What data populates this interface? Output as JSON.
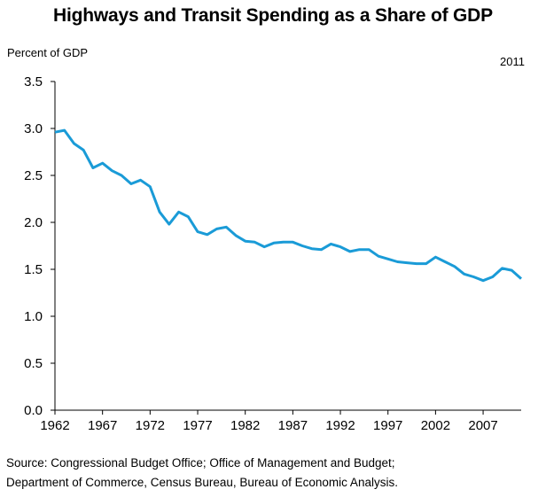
{
  "chart_data": {
    "type": "line",
    "title": "Highways and Transit Spending as a Share of GDP",
    "ylabel": "Percent of GDP",
    "xlabel": "",
    "annotation": "2011",
    "ylim": [
      0,
      3.5
    ],
    "xlim": [
      1962,
      2011
    ],
    "yticks": [
      0.0,
      0.5,
      1.0,
      1.5,
      2.0,
      2.5,
      3.0,
      3.5
    ],
    "ytick_labels": [
      "0.0",
      "0.5",
      "1.0",
      "1.5",
      "2.0",
      "2.5",
      "3.0",
      "3.5"
    ],
    "xticks": [
      1962,
      1967,
      1972,
      1977,
      1982,
      1987,
      1992,
      1997,
      2002,
      2007
    ],
    "xtick_labels": [
      "1962",
      "1967",
      "1972",
      "1977",
      "1982",
      "1987",
      "1992",
      "1997",
      "2002",
      "2007"
    ],
    "grid": false,
    "legend": "none",
    "series": [
      {
        "name": "Highways and Transit Spending",
        "color": "#1a9bd7",
        "x": [
          1962,
          1963,
          1964,
          1965,
          1966,
          1967,
          1968,
          1969,
          1970,
          1971,
          1972,
          1973,
          1974,
          1975,
          1976,
          1977,
          1978,
          1979,
          1980,
          1981,
          1982,
          1983,
          1984,
          1985,
          1986,
          1987,
          1988,
          1989,
          1990,
          1991,
          1992,
          1993,
          1994,
          1995,
          1996,
          1997,
          1998,
          1999,
          2000,
          2001,
          2002,
          2003,
          2004,
          2005,
          2006,
          2007,
          2008,
          2009,
          2010,
          2011
        ],
        "values": [
          2.96,
          2.98,
          2.84,
          2.77,
          2.58,
          2.63,
          2.55,
          2.5,
          2.41,
          2.45,
          2.38,
          2.11,
          1.98,
          2.11,
          2.06,
          1.9,
          1.87,
          1.93,
          1.95,
          1.86,
          1.8,
          1.79,
          1.74,
          1.78,
          1.79,
          1.79,
          1.75,
          1.72,
          1.71,
          1.77,
          1.74,
          1.69,
          1.71,
          1.71,
          1.64,
          1.61,
          1.58,
          1.57,
          1.56,
          1.56,
          1.63,
          1.58,
          1.53,
          1.45,
          1.42,
          1.38,
          1.42,
          1.51,
          1.49,
          1.4
        ]
      }
    ]
  },
  "source": {
    "line1": "Source: Congressional Budget Office; Office of Management and Budget;",
    "line2": "Department of Commerce, Census Bureau, Bureau of Economic Analysis."
  }
}
